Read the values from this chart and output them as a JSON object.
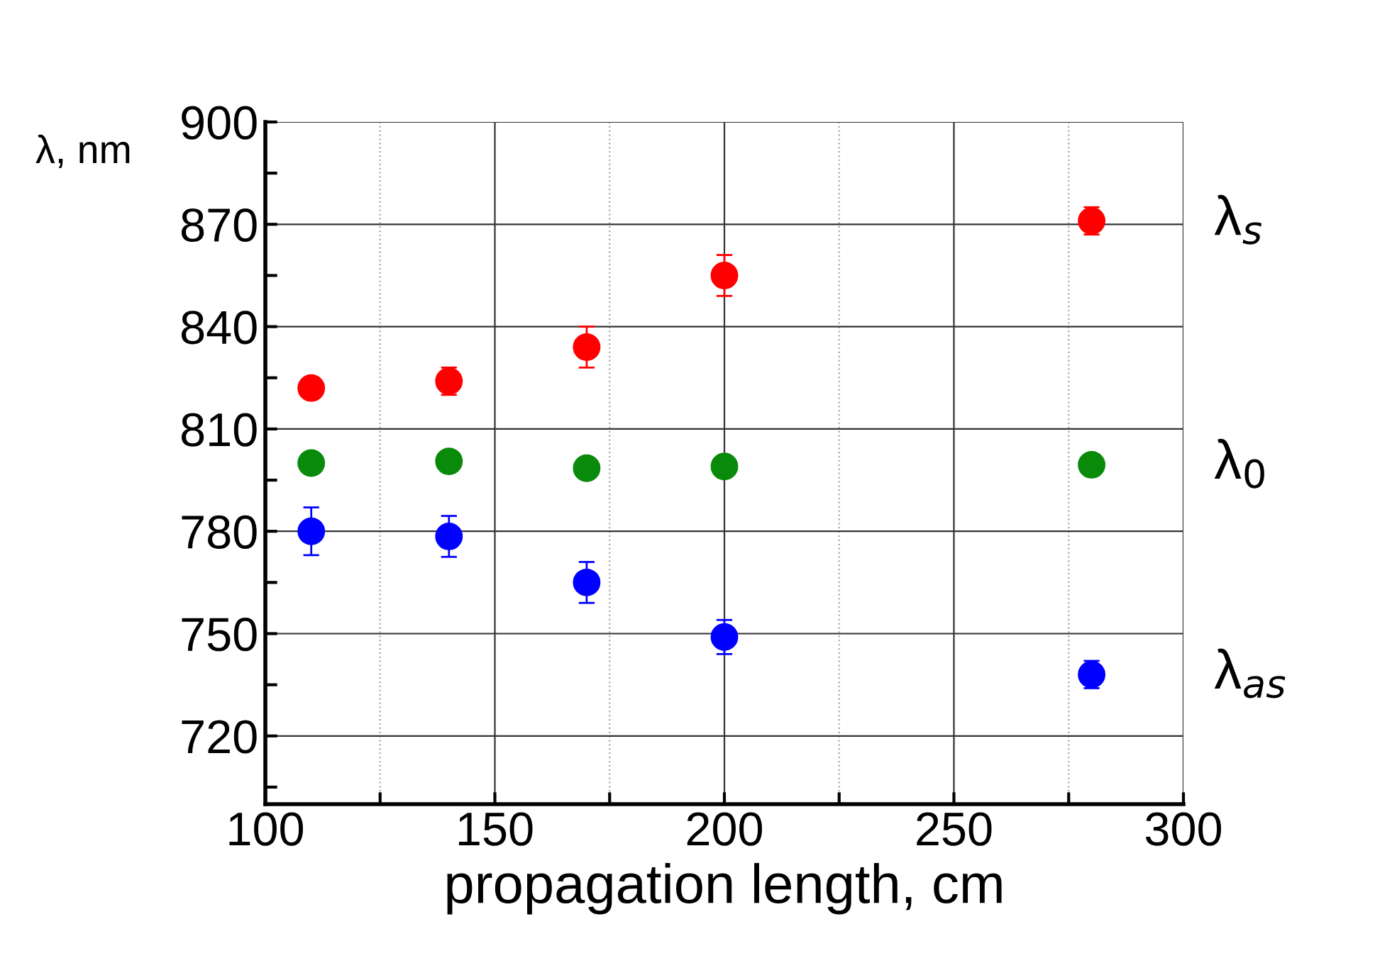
{
  "chart_data": {
    "type": "scatter",
    "xlabel": "propagation length, cm",
    "ylabel": "λ, nm",
    "x": [
      110,
      140,
      170,
      200,
      280
    ],
    "series": [
      {
        "name": "λ$_{s}$",
        "color": "#ff0000",
        "values": [
          822,
          824,
          834,
          855,
          871
        ],
        "errors": [
          3,
          4,
          6,
          6,
          4
        ]
      },
      {
        "name": "λ$_{0}$",
        "color": "#0a8a0a",
        "values": [
          800,
          800.5,
          798.5,
          799,
          799.5
        ]
      },
      {
        "name": "λ$_{as}$",
        "color": "#0000ff",
        "values": [
          780,
          778.5,
          765,
          749,
          738
        ],
        "errors": [
          7,
          6,
          6,
          5,
          4
        ]
      }
    ],
    "xlim": [
      100,
      300
    ],
    "xticks": [
      100,
      {
        "value": 125,
        "label": null
      },
      150,
      {
        "value": 175,
        "label": null
      },
      200,
      {
        "value": 225,
        "label": null
      },
      250,
      {
        "value": 275,
        "label": null
      },
      300
    ],
    "ylim": [
      700,
      900
    ],
    "yticks": [
      {
        "value": 705,
        "label": null
      },
      720,
      {
        "value": 735,
        "label": null
      },
      750,
      {
        "value": 765,
        "label": null
      },
      780,
      {
        "value": 795,
        "label": null
      },
      810,
      {
        "value": 825,
        "label": null
      },
      840,
      {
        "value": 855,
        "label": null
      },
      870,
      {
        "value": 885,
        "label": null
      },
      900
    ],
    "grid": true,
    "marker": "circle",
    "legend": false
  }
}
